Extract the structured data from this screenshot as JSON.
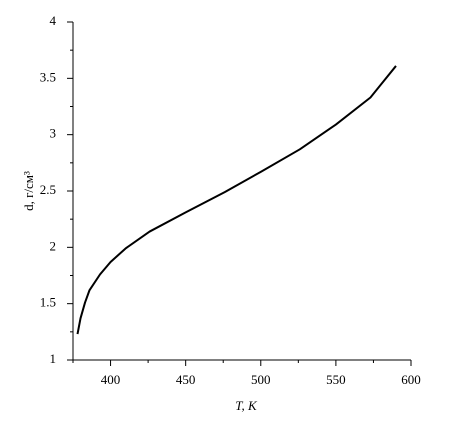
{
  "chart_data": {
    "type": "line",
    "xlabel": "T, K",
    "ylabel": "d, г/см³",
    "x": [
      378,
      380,
      383,
      386,
      393,
      400,
      410,
      426,
      450,
      476,
      500,
      526,
      550,
      573,
      590
    ],
    "series": [
      {
        "color": "#000000",
        "values": [
          1.23,
          1.37,
          1.51,
          1.62,
          1.76,
          1.87,
          1.99,
          2.14,
          2.31,
          2.49,
          2.67,
          2.87,
          3.09,
          3.33,
          3.61
        ]
      }
    ],
    "xlim": [
      375,
      600
    ],
    "xticks": [
      400,
      450,
      500,
      550,
      600
    ],
    "xminorticks": [
      375,
      425,
      475,
      525,
      575
    ],
    "ylim": [
      1,
      4
    ],
    "yticks": [
      1,
      1.5,
      2,
      2.5,
      3,
      3.5,
      4
    ],
    "yminorticks": [
      1.25,
      1.75,
      2.25,
      2.75,
      3.25,
      3.75
    ]
  }
}
